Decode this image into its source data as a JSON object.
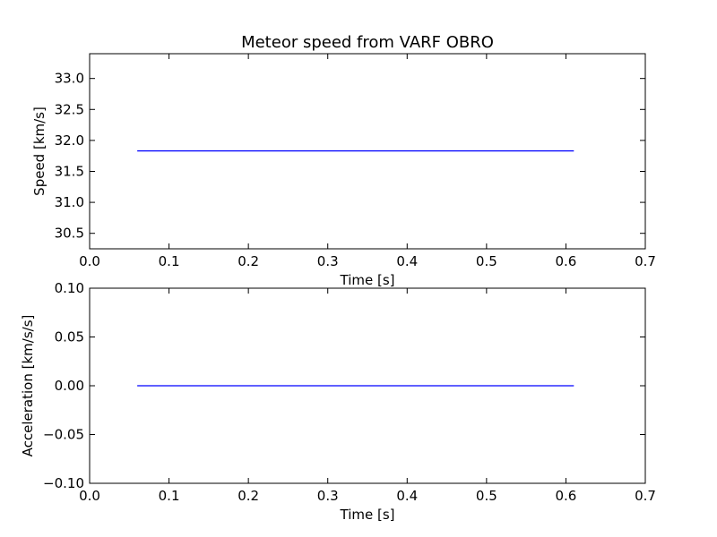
{
  "chart_data": [
    {
      "type": "line",
      "title": "Meteor speed from  VARF OBRO",
      "xlabel": "Time [s]",
      "ylabel": "Speed [km/s]",
      "xlim": [
        0.0,
        0.7
      ],
      "ylim": [
        30.25,
        33.4
      ],
      "xticks": [
        "0.0",
        "0.1",
        "0.2",
        "0.3",
        "0.4",
        "0.5",
        "0.6",
        "0.7"
      ],
      "yticks": [
        "30.5",
        "31.0",
        "31.5",
        "32.0",
        "32.5",
        "33.0"
      ],
      "grid": false,
      "series": [
        {
          "color": "#0000ff",
          "x": [
            0.06,
            0.61
          ],
          "y": [
            31.83,
            31.83
          ]
        }
      ]
    },
    {
      "type": "line",
      "title": "",
      "xlabel": "Time [s]",
      "ylabel": "Acceleration [km/s/s]",
      "xlim": [
        0.0,
        0.7
      ],
      "ylim": [
        -0.1,
        0.1
      ],
      "xticks": [
        "0.0",
        "0.1",
        "0.2",
        "0.3",
        "0.4",
        "0.5",
        "0.6",
        "0.7"
      ],
      "yticks": [
        "−0.10",
        "−0.05",
        "0.00",
        "0.05",
        "0.10"
      ],
      "grid": false,
      "series": [
        {
          "color": "#0000ff",
          "x": [
            0.06,
            0.61
          ],
          "y": [
            0.0,
            0.0
          ]
        }
      ]
    }
  ]
}
